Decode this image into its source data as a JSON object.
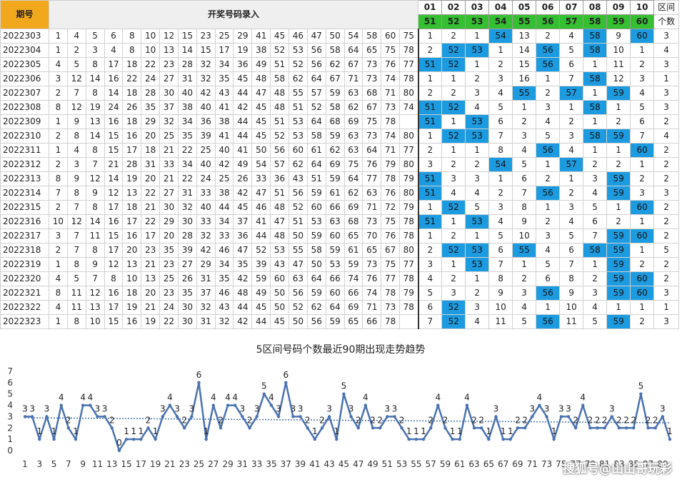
{
  "header": {
    "period_label": "期号",
    "entry_label": "开奖号码录入",
    "zone_row1": [
      "01",
      "02",
      "03",
      "04",
      "05",
      "06",
      "07",
      "08",
      "09",
      "10"
    ],
    "zone_row2": [
      "51",
      "52",
      "53",
      "54",
      "55",
      "56",
      "57",
      "58",
      "59",
      "60"
    ],
    "count_label_1": "区间",
    "count_label_2": "个数"
  },
  "rows": [
    {
      "period": "2022303",
      "nums": [
        1,
        4,
        5,
        6,
        8,
        10,
        12,
        15,
        23,
        25,
        29,
        41,
        45,
        46,
        47,
        50,
        54,
        58,
        60,
        75
      ],
      "zones": [
        1,
        2,
        1,
        54,
        13,
        2,
        4,
        58,
        9,
        60
      ],
      "hits": [
        4,
        8,
        10
      ],
      "count": 3
    },
    {
      "period": "2022304",
      "nums": [
        1,
        2,
        3,
        4,
        8,
        10,
        13,
        14,
        15,
        17,
        19,
        38,
        52,
        53,
        56,
        58,
        64,
        65,
        75,
        78
      ],
      "zones": [
        2,
        52,
        53,
        1,
        14,
        56,
        5,
        58,
        10,
        1
      ],
      "hits": [
        2,
        3,
        6,
        8
      ],
      "count": 4
    },
    {
      "period": "2022305",
      "nums": [
        4,
        5,
        8,
        17,
        18,
        22,
        23,
        28,
        32,
        34,
        36,
        49,
        51,
        52,
        56,
        62,
        67,
        73,
        76,
        77
      ],
      "zones": [
        51,
        52,
        1,
        2,
        15,
        56,
        6,
        1,
        11,
        2
      ],
      "hits": [
        1,
        2,
        6
      ],
      "count": 3
    },
    {
      "period": "2022306",
      "nums": [
        3,
        12,
        14,
        16,
        22,
        24,
        27,
        31,
        32,
        35,
        45,
        48,
        58,
        62,
        64,
        67,
        71,
        73,
        74,
        78
      ],
      "zones": [
        1,
        1,
        2,
        3,
        16,
        1,
        7,
        58,
        12,
        3
      ],
      "hits": [
        8
      ],
      "count": 1
    },
    {
      "period": "2022307",
      "nums": [
        2,
        7,
        8,
        14,
        18,
        28,
        30,
        40,
        42,
        43,
        44,
        47,
        48,
        55,
        57,
        59,
        63,
        68,
        71,
        80
      ],
      "zones": [
        2,
        2,
        3,
        4,
        55,
        2,
        57,
        1,
        59,
        4
      ],
      "hits": [
        5,
        7,
        9
      ],
      "count": 3
    },
    {
      "period": "2022308",
      "nums": [
        8,
        12,
        19,
        24,
        26,
        35,
        37,
        38,
        40,
        41,
        42,
        45,
        48,
        51,
        52,
        58,
        62,
        67,
        73,
        74
      ],
      "zones": [
        51,
        52,
        4,
        5,
        1,
        3,
        1,
        58,
        1,
        5
      ],
      "hits": [
        1,
        2,
        8
      ],
      "count": 3
    },
    {
      "period": "2022309",
      "nums": [
        1,
        9,
        13,
        16,
        18,
        29,
        32,
        34,
        36,
        38,
        44,
        45,
        51,
        53,
        64,
        68,
        69,
        75,
        78
      ],
      "zones": [
        51,
        1,
        53,
        6,
        2,
        4,
        2,
        1,
        2,
        6
      ],
      "hits": [
        1,
        3
      ],
      "count": 2
    },
    {
      "period": "2022310",
      "nums": [
        2,
        8,
        14,
        15,
        16,
        20,
        25,
        35,
        39,
        41,
        44,
        45,
        52,
        53,
        58,
        59,
        63,
        73,
        74,
        80
      ],
      "zones": [
        1,
        52,
        53,
        7,
        3,
        5,
        3,
        58,
        59,
        7
      ],
      "hits": [
        2,
        3,
        8,
        9
      ],
      "count": 4
    },
    {
      "period": "2022311",
      "nums": [
        1,
        4,
        8,
        15,
        17,
        18,
        21,
        22,
        25,
        40,
        41,
        50,
        56,
        60,
        61,
        62,
        63,
        64,
        71,
        77
      ],
      "zones": [
        2,
        1,
        1,
        8,
        4,
        56,
        4,
        1,
        1,
        60
      ],
      "hits": [
        6,
        10
      ],
      "count": 2
    },
    {
      "period": "2022312",
      "nums": [
        2,
        3,
        7,
        21,
        28,
        31,
        33,
        34,
        40,
        42,
        49,
        54,
        57,
        62,
        64,
        69,
        75,
        76,
        79,
        80
      ],
      "zones": [
        3,
        2,
        2,
        54,
        5,
        1,
        57,
        2,
        2,
        1
      ],
      "hits": [
        4,
        7
      ],
      "count": 2
    },
    {
      "period": "2022313",
      "nums": [
        8,
        9,
        12,
        14,
        19,
        20,
        21,
        22,
        24,
        25,
        26,
        33,
        36,
        43,
        51,
        59,
        64,
        77,
        78,
        79
      ],
      "zones": [
        51,
        3,
        3,
        1,
        6,
        2,
        1,
        3,
        59,
        2
      ],
      "hits": [
        1,
        9
      ],
      "count": 2
    },
    {
      "period": "2022314",
      "nums": [
        7,
        8,
        9,
        12,
        13,
        22,
        27,
        31,
        33,
        38,
        42,
        47,
        51,
        56,
        59,
        61,
        62,
        63,
        76,
        80
      ],
      "zones": [
        51,
        4,
        4,
        2,
        7,
        56,
        2,
        4,
        59,
        3
      ],
      "hits": [
        1,
        6,
        9
      ],
      "count": 3
    },
    {
      "period": "2022315",
      "nums": [
        2,
        7,
        8,
        17,
        18,
        21,
        30,
        32,
        40,
        44,
        45,
        46,
        48,
        52,
        60,
        66,
        69,
        71,
        72,
        79
      ],
      "zones": [
        1,
        52,
        5,
        3,
        8,
        1,
        3,
        5,
        1,
        60
      ],
      "hits": [
        2,
        10
      ],
      "count": 2
    },
    {
      "period": "2022316",
      "nums": [
        10,
        12,
        14,
        16,
        17,
        22,
        29,
        30,
        33,
        34,
        37,
        41,
        47,
        51,
        53,
        63,
        68,
        73,
        75,
        78
      ],
      "zones": [
        51,
        1,
        53,
        4,
        9,
        2,
        4,
        6,
        2,
        1
      ],
      "hits": [
        1,
        3
      ],
      "count": 2
    },
    {
      "period": "2022317",
      "nums": [
        3,
        7,
        11,
        15,
        16,
        17,
        20,
        28,
        32,
        33,
        36,
        44,
        48,
        50,
        59,
        60,
        65,
        70,
        76,
        78
      ],
      "zones": [
        1,
        2,
        1,
        5,
        10,
        3,
        5,
        7,
        59,
        60
      ],
      "hits": [
        9,
        10
      ],
      "count": 2
    },
    {
      "period": "2022318",
      "nums": [
        2,
        7,
        8,
        17,
        20,
        23,
        35,
        39,
        42,
        46,
        47,
        52,
        53,
        55,
        58,
        59,
        61,
        65,
        67,
        80
      ],
      "zones": [
        2,
        52,
        53,
        6,
        55,
        4,
        6,
        58,
        59,
        1
      ],
      "hits": [
        2,
        3,
        5,
        8,
        9
      ],
      "count": 5
    },
    {
      "period": "2022319",
      "nums": [
        1,
        8,
        9,
        12,
        13,
        21,
        23,
        27,
        29,
        34,
        35,
        39,
        43,
        47,
        50,
        53,
        59,
        73,
        75,
        77
      ],
      "zones": [
        3,
        1,
        53,
        7,
        1,
        5,
        7,
        1,
        59,
        2
      ],
      "hits": [
        3,
        9
      ],
      "count": 2
    },
    {
      "period": "2022320",
      "nums": [
        4,
        5,
        7,
        8,
        10,
        13,
        25,
        26,
        31,
        35,
        42,
        59,
        60,
        63,
        64,
        66,
        74,
        76,
        77,
        78
      ],
      "zones": [
        4,
        2,
        1,
        8,
        2,
        6,
        8,
        2,
        59,
        60
      ],
      "hits": [
        9,
        10
      ],
      "count": 2
    },
    {
      "period": "2022321",
      "nums": [
        8,
        11,
        12,
        16,
        18,
        20,
        23,
        35,
        37,
        46,
        48,
        49,
        50,
        56,
        59,
        60,
        66,
        74,
        78,
        79
      ],
      "zones": [
        5,
        3,
        2,
        9,
        3,
        56,
        9,
        3,
        59,
        60
      ],
      "hits": [
        6,
        9,
        10
      ],
      "count": 3
    },
    {
      "period": "2022322",
      "nums": [
        4,
        11,
        13,
        17,
        19,
        21,
        24,
        30,
        32,
        43,
        44,
        45,
        50,
        52,
        62,
        64,
        69,
        71,
        73,
        78
      ],
      "zones": [
        6,
        52,
        3,
        10,
        4,
        1,
        10,
        4,
        1,
        1
      ],
      "hits": [
        2
      ],
      "count": 1
    },
    {
      "period": "2022323",
      "nums": [
        1,
        8,
        10,
        15,
        16,
        19,
        22,
        30,
        31,
        32,
        42,
        44,
        45,
        50,
        56,
        59,
        65,
        66,
        78
      ],
      "zones": [
        7,
        52,
        4,
        11,
        5,
        56,
        11,
        5,
        59,
        2
      ],
      "hits": [
        2,
        6,
        9
      ],
      "count": 3
    }
  ],
  "chart_data": {
    "type": "line",
    "title": "5区间号码个数最近90期出现走势趋势",
    "xlabel": "",
    "ylabel": "",
    "ylim": [
      0,
      7
    ],
    "yticks": [
      0,
      1,
      2,
      3,
      4,
      5,
      6,
      7
    ],
    "xticks": [
      1,
      3,
      5,
      7,
      9,
      11,
      13,
      15,
      17,
      19,
      21,
      23,
      25,
      27,
      29,
      31,
      33,
      35,
      37,
      39,
      41,
      43,
      45,
      47,
      49,
      51,
      53,
      55,
      57,
      59,
      61,
      63,
      65,
      67,
      69,
      71,
      73,
      75,
      77,
      79,
      81,
      83,
      85,
      87,
      89
    ],
    "x": [
      1,
      2,
      3,
      4,
      5,
      6,
      7,
      8,
      9,
      10,
      11,
      12,
      13,
      14,
      15,
      16,
      17,
      18,
      19,
      20,
      21,
      22,
      23,
      24,
      25,
      26,
      27,
      28,
      29,
      30,
      31,
      32,
      33,
      34,
      35,
      36,
      37,
      38,
      39,
      40,
      41,
      42,
      43,
      44,
      45,
      46,
      47,
      48,
      49,
      50,
      51,
      52,
      53,
      54,
      55,
      56,
      57,
      58,
      59,
      60,
      61,
      62,
      63,
      64,
      65,
      66,
      67,
      68,
      69,
      70,
      71,
      72,
      73,
      74,
      75,
      76,
      77,
      78,
      79,
      80,
      81,
      82,
      83,
      84,
      85,
      86,
      87,
      88,
      89,
      90
    ],
    "series": [
      {
        "values": [
          3,
          3,
          1,
          3,
          1,
          4,
          2,
          1,
          4,
          4,
          3,
          3,
          2,
          0,
          1,
          1,
          1,
          2,
          1,
          3,
          4,
          3,
          2,
          3,
          6,
          1,
          4,
          2,
          4,
          4,
          3,
          2,
          3,
          5,
          4,
          3,
          6,
          3,
          3,
          2,
          1,
          2,
          3,
          1,
          5,
          3,
          2,
          4,
          2,
          2,
          3,
          3,
          2,
          1,
          1,
          1,
          2,
          4,
          2,
          1,
          1,
          4,
          2,
          2,
          1,
          3,
          1,
          1,
          2,
          2,
          3,
          4,
          3,
          1,
          3,
          3,
          2,
          4,
          2,
          2,
          2,
          3,
          2,
          2,
          2,
          5,
          2,
          2,
          3,
          1
        ]
      }
    ],
    "trendline": {
      "style": "dotted",
      "start": 2.9,
      "end": 2.45
    },
    "grid": false,
    "legend": "none",
    "line_color": "#4a72b0",
    "trend_color": "#4a72b0"
  },
  "watermark": "搜狐号@山山哥玩彩",
  "colors": {
    "hit": "#1c9be0",
    "header_green": "#34c030",
    "header_orange": "#f2a81c",
    "title_red": "#d42020"
  }
}
